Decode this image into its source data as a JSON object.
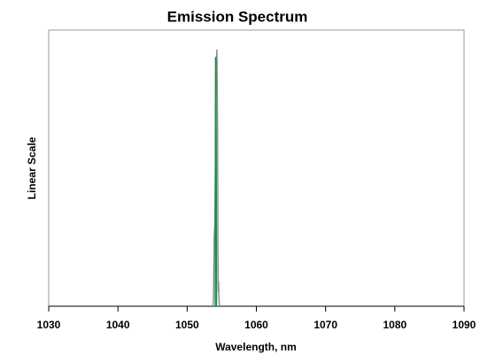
{
  "chart_data": {
    "type": "line",
    "title": "Emission Spectrum",
    "x_label": "Wavelength, nm",
    "y_label": "Linear Scale",
    "xlim": [
      1030,
      1090
    ],
    "xticks": [
      1030,
      1040,
      1050,
      1060,
      1070,
      1080,
      1090
    ],
    "ylim": [
      0,
      1
    ],
    "series": [
      {
        "color": "#8c8c8c",
        "x": [
          1053.7,
          1053.8,
          1053.9,
          1054.0,
          1054.1,
          1054.2,
          1054.3,
          1054.4,
          1054.45,
          1054.5,
          1054.55,
          1054.6,
          1054.7
        ],
        "values": [
          0,
          0.02,
          0.25,
          0.3,
          0.6,
          0.88,
          0.93,
          0.63,
          0.2,
          0.05,
          0.09,
          0.02,
          0
        ]
      },
      {
        "color": "#1e8c4a",
        "x": [
          1054.05,
          1054.1,
          1054.15,
          1054.2,
          1054.25
        ],
        "values": [
          0,
          0.9,
          0.9,
          0.62,
          0
        ]
      }
    ]
  }
}
